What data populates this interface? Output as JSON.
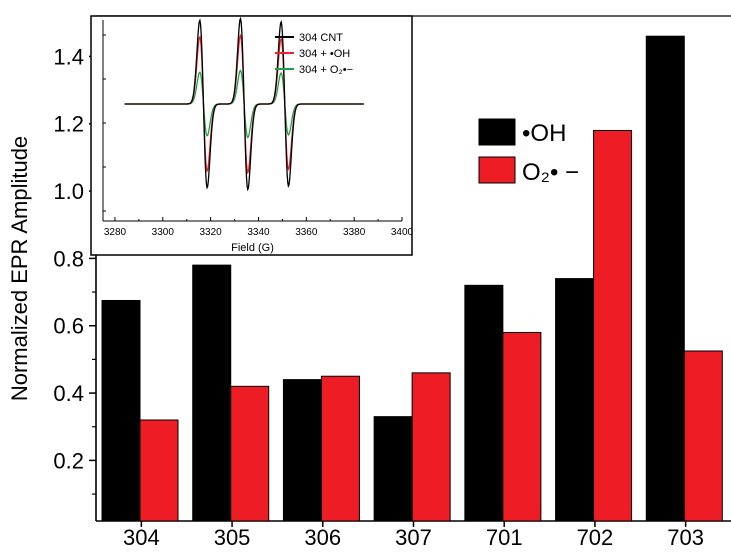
{
  "chart_data": [
    {
      "type": "bar",
      "ylabel": "Normalized EPR Amplitude",
      "xlabel": "",
      "categories": [
        "304",
        "305",
        "306",
        "307",
        "701",
        "702",
        "703"
      ],
      "ylim": [
        0.02,
        1.52
      ],
      "y_ticks": [
        0.2,
        0.4,
        0.6,
        0.8,
        1.0,
        1.2,
        1.4
      ],
      "y_tick_labels": [
        "0.2",
        "0.4",
        "0.6",
        "0.8",
        "1.0",
        "1.2",
        "1.4"
      ],
      "series": [
        {
          "name": "•OH",
          "color": "#000000",
          "values": [
            0.675,
            0.78,
            0.44,
            0.33,
            0.72,
            0.74,
            1.46
          ]
        },
        {
          "name": "O₂• −",
          "color": "#ee1c25",
          "values": [
            0.32,
            0.42,
            0.45,
            0.46,
            0.58,
            1.18,
            0.525
          ]
        }
      ],
      "legend": {
        "placement": "right",
        "entries": [
          "•OH",
          "O₂• −"
        ]
      }
    },
    {
      "type": "line",
      "xlabel": "Field (G)",
      "ylabel": "",
      "xlim": [
        3275,
        3400
      ],
      "x_ticks": [
        3280,
        3300,
        3320,
        3340,
        3360,
        3380,
        3400
      ],
      "x_tick_labels": [
        "3280",
        "3300",
        "3320",
        "3340",
        "3360",
        "3380",
        "3400"
      ],
      "y_axis_labels_shown": false,
      "line_centers": [
        3317,
        3334,
        3351
      ],
      "baseline_signal": 0,
      "series": [
        {
          "name": "304 CNT",
          "color": "#000000",
          "amplitudes": [
            1.0,
            1.02,
            0.98
          ]
        },
        {
          "name": "304 + •OH",
          "color": "#e8262d",
          "amplitudes": [
            0.8,
            0.82,
            0.78
          ]
        },
        {
          "name": "304 + O₂•−",
          "color": "#1aa34a",
          "amplitudes": [
            0.38,
            0.4,
            0.37
          ]
        }
      ],
      "legend": {
        "placement": "top-right",
        "entries": [
          "304 CNT",
          "304 + •OH",
          "304 + O₂•−"
        ]
      }
    }
  ]
}
